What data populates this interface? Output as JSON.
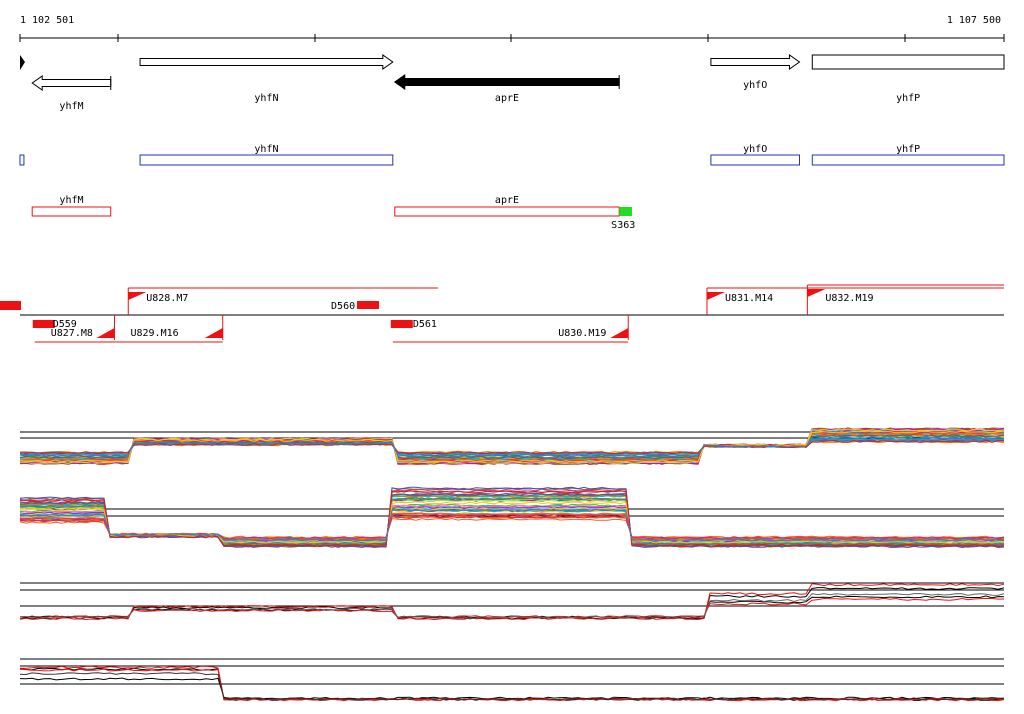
{
  "ruler": {
    "start_label": "1 102 501",
    "end_label": "1 107 500",
    "start_bp": 1102501,
    "end_bp": 1107500
  },
  "genes": [
    {
      "id": "yhfM",
      "label": "yhfM",
      "start_bp": 1102563,
      "end_bp": 1102962,
      "strand": "-",
      "filled": false
    },
    {
      "id": "yhfN",
      "label": "yhfN",
      "start_bp": 1103111,
      "end_bp": 1104395,
      "strand": "+",
      "filled": false
    },
    {
      "id": "aprE",
      "label": "aprE",
      "start_bp": 1104405,
      "end_bp": 1105545,
      "strand": "-",
      "filled": true
    },
    {
      "id": "yhfO",
      "label": "yhfO",
      "start_bp": 1106011,
      "end_bp": 1106461,
      "strand": "+",
      "filled": false
    },
    {
      "id": "yhfP",
      "label": "yhfP",
      "start_bp": 1106526,
      "end_bp": 1107500,
      "strand": "+",
      "filled": false
    }
  ],
  "blue_track": [
    {
      "label": "",
      "start_bp": 1102501,
      "end_bp": 1102521
    },
    {
      "label": "yhfN",
      "start_bp": 1103111,
      "end_bp": 1104395
    },
    {
      "label": "yhfO",
      "label2": "",
      "start_bp": 1106011,
      "end_bp": 1106461
    },
    {
      "label": "yhfP",
      "start_bp": 1106526,
      "end_bp": 1107500
    }
  ],
  "red_track": {
    "boxes": [
      {
        "label": "yhfM",
        "start_bp": 1102563,
        "end_bp": 1102962
      },
      {
        "label": "aprE",
        "start_bp": 1104405,
        "end_bp": 1105545
      }
    ],
    "site": {
      "label": "S363",
      "start_bp": 1105545,
      "end_bp": 1105610
    }
  },
  "transcripts": {
    "upper": [
      {
        "label": "U828.M7",
        "start_bp": 1103051,
        "end_bp": 1104625
      },
      {
        "label": "U831.M14",
        "start_bp": 1105991,
        "end_bp": 1107500
      },
      {
        "label": "U832.M19",
        "start_bp": 1106501,
        "end_bp": 1107500
      }
    ],
    "lower": [
      {
        "label": "U827.M8",
        "start_bp": 1102576,
        "end_bp": 1102981
      },
      {
        "label": "U829.M16",
        "start_bp": 1102981,
        "end_bp": 1103531
      },
      {
        "label": "U830.M19",
        "start_bp": 1104395,
        "end_bp": 1105591
      }
    ],
    "downshifts": [
      {
        "label": "D559",
        "bp": 1102576
      },
      {
        "label": "D560",
        "bp": 1104325
      },
      {
        "label": "D561",
        "bp": 1104395
      }
    ]
  },
  "colors": {
    "gene_outline": "#000000",
    "blue": "#2234b0",
    "red": "#ee1111",
    "site": "#22dd22",
    "baseline": "#000000"
  }
}
